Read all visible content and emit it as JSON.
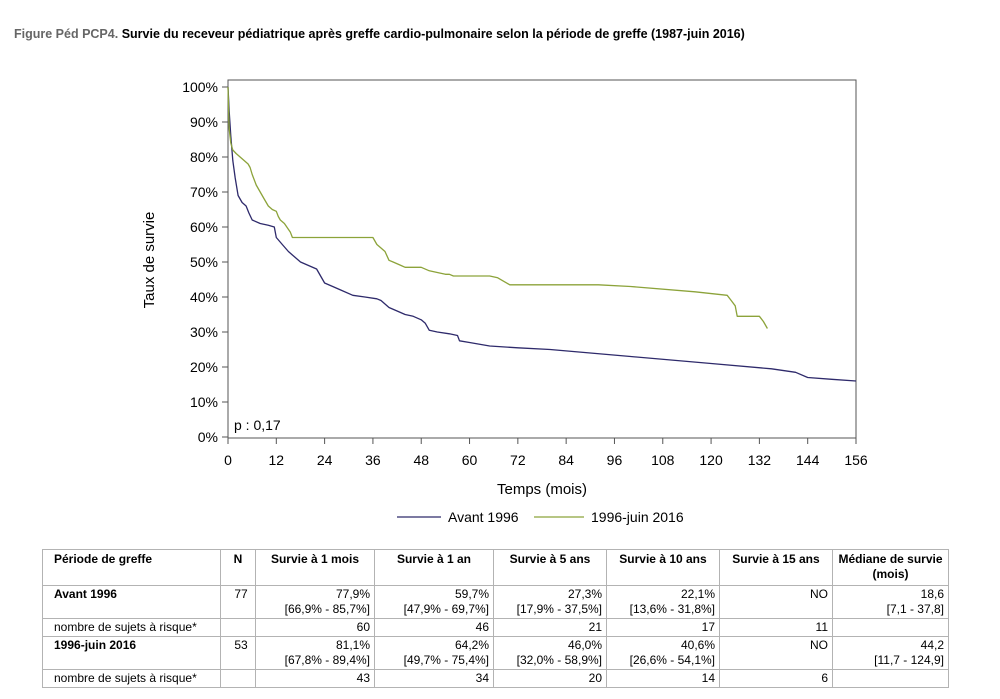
{
  "figure": {
    "label": "Figure Péd PCP4.",
    "title": "Survie du receveur pédiatrique après greffe cardio-pulmonaire selon la période de greffe (1987-juin 2016)"
  },
  "chart_data": {
    "type": "line",
    "title": "",
    "xlabel": "Temps (mois)",
    "ylabel": "Taux de survie",
    "xlim": [
      0,
      156
    ],
    "ylim": [
      0,
      100
    ],
    "x_ticks": [
      "0",
      "12",
      "24",
      "36",
      "48",
      "60",
      "72",
      "84",
      "96",
      "108",
      "120",
      "132",
      "144",
      "156"
    ],
    "y_ticks": [
      "0%",
      "10%",
      "20%",
      "30%",
      "40%",
      "50%",
      "60%",
      "70%",
      "80%",
      "90%",
      "100%"
    ],
    "annotation": "p : 0,17",
    "legend_position": "bottom",
    "grid": false,
    "series": [
      {
        "name": "Avant 1996",
        "color": "#2e2a6b",
        "x": [
          0,
          0.3,
          0.7,
          1.2,
          1.8,
          2.5,
          3.5,
          4.5,
          5.2,
          6,
          8,
          10,
          11.5,
          12,
          13.5,
          15,
          16,
          18,
          20,
          22,
          23,
          24,
          26,
          28,
          31,
          34,
          37,
          38,
          40,
          42,
          44,
          46,
          48,
          49,
          50,
          52,
          55,
          57,
          57.5,
          60,
          65,
          72,
          80,
          90,
          100,
          120,
          135,
          141,
          144,
          150,
          156
        ],
        "y": [
          100,
          93,
          86,
          79,
          74,
          69,
          67,
          66,
          64,
          62,
          61,
          60.5,
          60,
          57,
          55,
          53,
          52,
          50,
          49,
          48,
          46,
          44,
          43,
          42,
          40.5,
          40,
          39.5,
          39,
          37,
          36,
          35,
          34.5,
          33.5,
          32.5,
          30.5,
          30,
          29.5,
          29,
          27.5,
          27,
          26,
          25.5,
          25,
          24,
          23,
          21,
          19.5,
          18.5,
          17,
          16.5,
          16
        ]
      },
      {
        "name": "1996-juin 2016",
        "color": "#8ca33a",
        "x": [
          0,
          0.3,
          0.7,
          1.2,
          2,
          3,
          4,
          5,
          5.5,
          6,
          7,
          7.5,
          8,
          9,
          10,
          11,
          12,
          12.5,
          13,
          14,
          15.5,
          16,
          36,
          37,
          38,
          39,
          40,
          41,
          43,
          44,
          48,
          50,
          52,
          54,
          55,
          56,
          65,
          67,
          70,
          92,
          100,
          116,
          124,
          125,
          126,
          126.5,
          131,
          132,
          133,
          134
        ],
        "y": [
          100,
          88,
          84,
          82,
          81,
          80,
          79,
          78,
          77,
          75,
          72,
          71,
          70,
          68,
          66,
          65,
          64.5,
          63,
          62,
          61,
          58.5,
          57,
          57,
          55,
          54,
          53,
          50.5,
          50,
          49,
          48.5,
          48.5,
          47.5,
          47,
          46.5,
          46.5,
          46,
          46,
          45.5,
          43.5,
          43.5,
          43,
          41.5,
          40.5,
          39,
          37.5,
          34.5,
          34.5,
          34.5,
          33,
          31
        ]
      }
    ]
  },
  "table": {
    "headers": [
      "Période de greffe",
      "N",
      "Survie à 1 mois",
      "Survie à 1 an",
      "Survie à 5 ans",
      "Survie à 10 ans",
      "Survie à 15 ans",
      "Médiane de survie (mois)"
    ],
    "groups": [
      {
        "name": "Avant 1996",
        "n": "77",
        "m1": "77,9%",
        "m1_ci": "[66,9% - 85,7%]",
        "y1": "59,7%",
        "y1_ci": "[47,9% - 69,7%]",
        "y5": "27,3%",
        "y5_ci": "[17,9% - 37,5%]",
        "y10": "22,1%",
        "y10_ci": "[13,6% - 31,8%]",
        "y15": "NO",
        "median": "18,6",
        "median_ci": "[7,1 - 37,8]",
        "risk_label": "nombre de sujets à risque*",
        "risk": [
          "60",
          "46",
          "21",
          "17",
          "11"
        ]
      },
      {
        "name": "1996-juin 2016",
        "n": "53",
        "m1": "81,1%",
        "m1_ci": "[67,8% - 89,4%]",
        "y1": "64,2%",
        "y1_ci": "[49,7% - 75,4%]",
        "y5": "46,0%",
        "y5_ci": "[32,0% - 58,9%]",
        "y10": "40,6%",
        "y10_ci": "[26,6% - 54,1%]",
        "y15": "NO",
        "median": "44,2",
        "median_ci": "[11,7 - 124,9]",
        "risk_label": "nombre de sujets à risque*",
        "risk": [
          "43",
          "34",
          "20",
          "14",
          "6"
        ]
      }
    ]
  }
}
